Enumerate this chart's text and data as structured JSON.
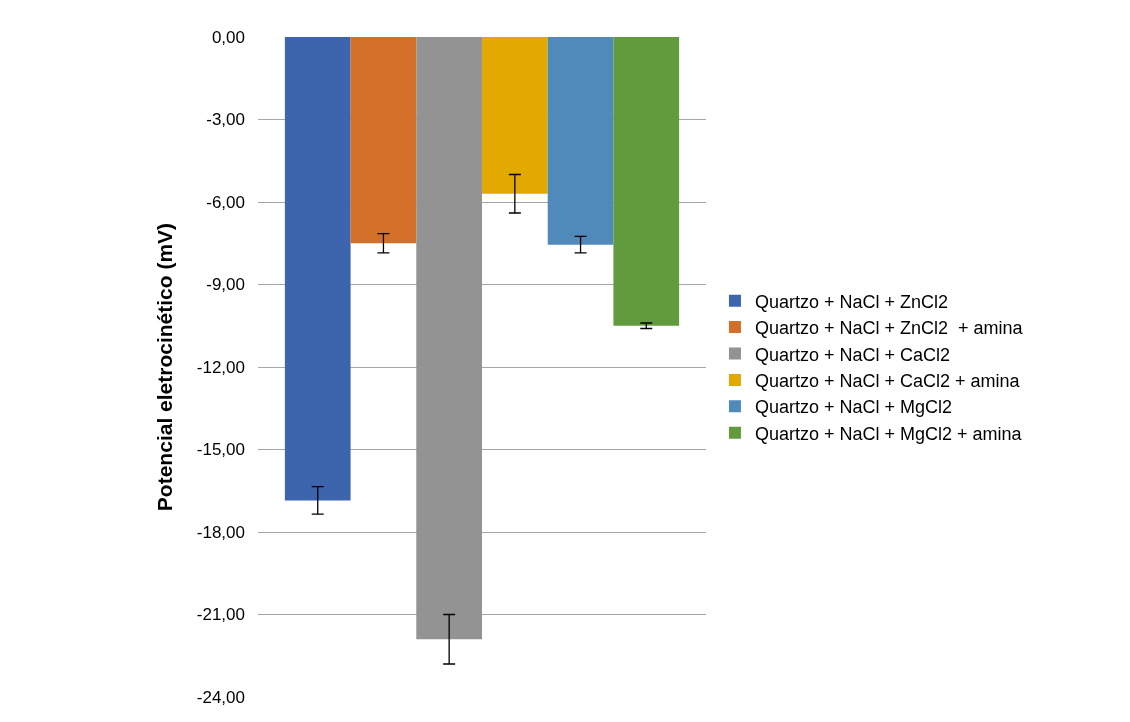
{
  "chart_data": {
    "type": "bar",
    "ylabel": "Potencial eletrocinético (mV)",
    "categories": [
      null
    ],
    "series": [
      {
        "name": "Quartzo + NaCl + ZnCl2",
        "color": "#3c65ad",
        "values": [
          -16.85
        ],
        "errors": [
          0.5
        ]
      },
      {
        "name": "Quartzo + NaCl + ZnCl2  + amina",
        "color": "#d46f2a",
        "values": [
          -7.5
        ],
        "errors": [
          0.35
        ]
      },
      {
        "name": "Quartzo + NaCl + CaCl2",
        "color": "#939393",
        "values": [
          -21.9
        ],
        "errors": [
          0.9
        ]
      },
      {
        "name": "Quartzo + NaCl + CaCl2 + amina",
        "color": "#e2aa00",
        "values": [
          -5.7
        ],
        "errors": [
          0.7
        ]
      },
      {
        "name": "Quartzo + NaCl + MgCl2",
        "color": "#508abb",
        "values": [
          -7.55
        ],
        "errors": [
          0.3
        ]
      },
      {
        "name": "Quartzo + NaCl + MgCl2 + amina",
        "color": "#629a3e",
        "values": [
          -10.5
        ],
        "errors": [
          0.1
        ]
      }
    ],
    "ylim": [
      -24,
      0
    ],
    "yticks": [
      {
        "value": 0,
        "label": "0,00"
      },
      {
        "value": -3,
        "label": "-3,00"
      },
      {
        "value": -6,
        "label": "-6,00"
      },
      {
        "value": -9,
        "label": "-9,00"
      },
      {
        "value": -12,
        "label": "-12,00"
      },
      {
        "value": -15,
        "label": "-15,00"
      },
      {
        "value": -18,
        "label": "-18,00"
      },
      {
        "value": -21,
        "label": "-21,00"
      },
      {
        "value": -24,
        "label": "-24,00"
      }
    ],
    "grid": "y",
    "legend": "right"
  }
}
